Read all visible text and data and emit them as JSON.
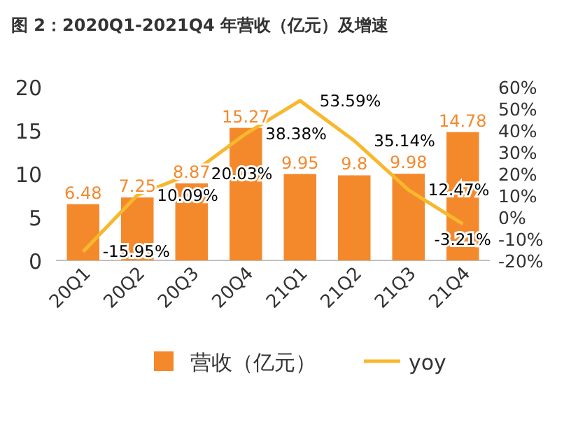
{
  "chart_data": {
    "type": "bar",
    "title": "图 2：2020Q1-2021Q4 年营收（亿元）及增速",
    "categories": [
      "20Q1",
      "20Q2",
      "20Q3",
      "20Q4",
      "21Q1",
      "21Q2",
      "21Q3",
      "21Q4"
    ],
    "series": [
      {
        "name": "营收（亿元）",
        "type": "bar",
        "color": "#f4892c",
        "values": [
          6.48,
          7.25,
          8.87,
          15.27,
          9.95,
          9.8,
          9.98,
          14.78
        ],
        "value_labels": [
          "6.48",
          "7.25",
          "8.87",
          "15.27",
          "9.95",
          "9.8",
          "9.98",
          "14.78"
        ]
      },
      {
        "name": "yoy",
        "type": "line",
        "axis": "y2",
        "color": "#f7b82e",
        "values": [
          -15.95,
          10.09,
          20.03,
          38.38,
          53.59,
          35.14,
          12.47,
          -3.21
        ],
        "value_labels": [
          "-15.95%",
          "10.09%",
          "20.03%",
          "38.38%",
          "53.59%",
          "35.14%",
          "12.47%",
          "-3.21%"
        ]
      }
    ],
    "ylim": [
      0,
      20
    ],
    "yticks": [
      0,
      5,
      10,
      15,
      20
    ],
    "y2lim": [
      -20,
      60
    ],
    "y2ticks": [
      {
        "value": -20,
        "label": "-20%"
      },
      {
        "value": -10,
        "label": "-10%"
      },
      {
        "value": 0,
        "label": "0%"
      },
      {
        "value": 10,
        "label": "10%"
      },
      {
        "value": 20,
        "label": "20%"
      },
      {
        "value": 30,
        "label": "30%"
      },
      {
        "value": 40,
        "label": "40%"
      },
      {
        "value": 50,
        "label": "50%"
      },
      {
        "value": 60,
        "label": "60%"
      }
    ],
    "grid": false,
    "legend": "bottom",
    "marker": "none"
  }
}
